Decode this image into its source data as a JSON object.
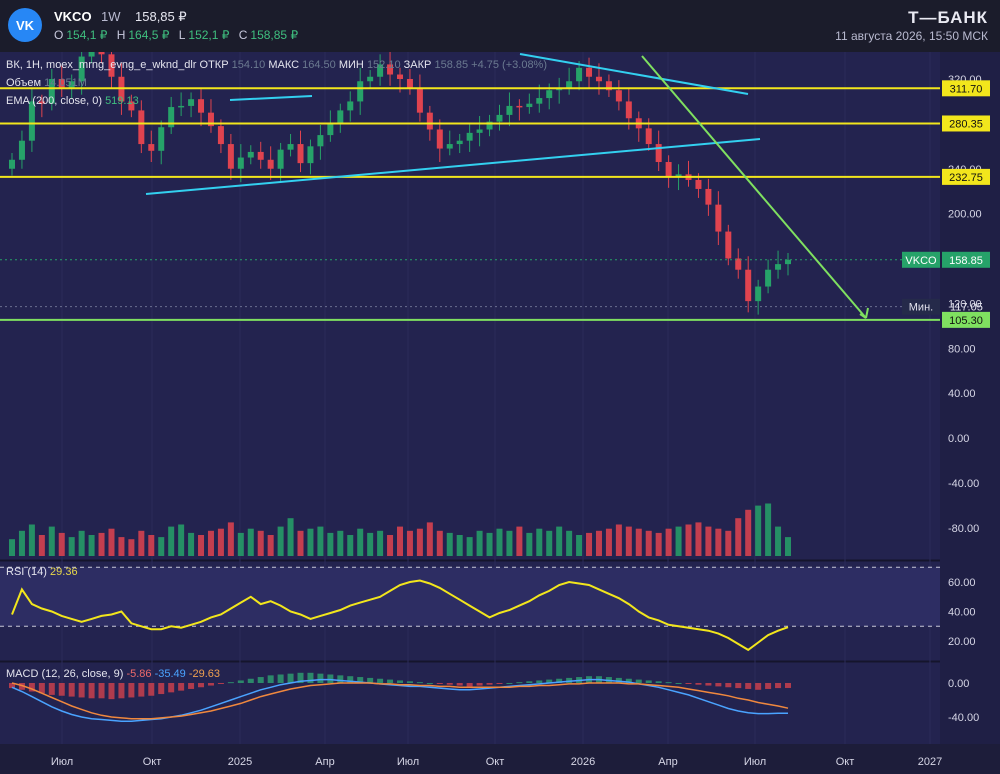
{
  "header": {
    "logo_text": "VK",
    "ticker": "VKCO",
    "timeframe": "1W",
    "last_price": "158,85 ₽",
    "open_label": "O",
    "open": "154,1 ₽",
    "high_label": "H",
    "high": "164,5 ₽",
    "low_label": "L",
    "low": "152,1 ₽",
    "close_label": "C",
    "close": "158,85 ₽",
    "brand": "Т—БАНК",
    "timestamp": "11 августа 2026, 15:50 МСК"
  },
  "legend": {
    "study_line": "ВК, 1Н, moex_mrng_evng_e_wknd_dlr",
    "open_label": "ОТКР",
    "open_value": "154.10",
    "high_label": "МАКС",
    "high_value": "164.50",
    "low_label": "МИН",
    "low_value": "152.10",
    "close_label": "ЗАКР",
    "close_value": "158.85",
    "change": "+4.75 (+3.08%)",
    "volume_label": "Объем",
    "volume_value": "14.051M",
    "ema_label": "EMA (200, close, 0)",
    "ema_value": "519.13",
    "rsi_label": "RSI (14)",
    "rsi_value": "29.36",
    "macd_label": "MACD (12, 26, close, 9)",
    "macd_v1": "-5.86",
    "macd_v2": "-35.49",
    "macd_v3": "-29.63"
  },
  "colors": {
    "up": "#26a269",
    "down": "#e0434f",
    "level": "#f2e61c",
    "trend": "#33d0f0",
    "target": "#7fe060",
    "rsi": "#f2e61c",
    "macd": "#4aa3ff",
    "signal": "#f0883e"
  },
  "chart_data": [
    {
      "type": "candlestick",
      "title": "VKCO 1W",
      "x_ticks": [
        "Июл",
        "Окт",
        "2025",
        "Апр",
        "Июл",
        "Окт",
        "2026",
        "Апр",
        "Июл",
        "Окт",
        "2027"
      ],
      "y_ticks": [
        320,
        280,
        240,
        200,
        160,
        120,
        80,
        40,
        0,
        -40,
        -80
      ],
      "y_tick_labels": [
        "320.00",
        "280.00",
        "240.00",
        "200.00",
        "160.00",
        "120.00",
        "80.00",
        "40.00",
        "0.00",
        "-40.00",
        "-80.00"
      ],
      "ylim": [
        -100,
        340
      ],
      "levels": [
        {
          "label": "311.70",
          "value": 311.7
        },
        {
          "label": "280.35",
          "value": 280.35
        },
        {
          "label": "232.75",
          "value": 232.75
        },
        {
          "label": "105.30",
          "value": 105.3
        }
      ],
      "price_tag": {
        "name": "VKCO",
        "value": "158.85",
        "y": 158.85
      },
      "min_tag": {
        "name": "Мин.",
        "value": "117.05",
        "y": 117.05
      },
      "trendlines": [
        {
          "x": [
            6,
            14
          ],
          "y": [
            246,
            277
          ]
        },
        {
          "x": [
            13,
            38
          ],
          "y": [
            310,
            301
          ]
        },
        {
          "x": [
            24,
            39
          ],
          "y": [
            378,
            343
          ]
        },
        {
          "x": [
            59,
            91
          ],
          "y": [
            278,
            316
          ]
        }
      ],
      "arrow": {
        "from": [
          33,
          396
        ],
        "to": [
          44,
          115
        ]
      },
      "close": [
        248,
        265,
        300,
        298,
        320,
        312,
        318,
        340,
        350,
        342,
        322,
        300,
        292,
        262,
        256,
        277,
        295,
        296,
        302,
        290,
        278,
        262,
        240,
        250,
        255,
        248,
        240,
        257,
        262,
        245,
        260,
        270,
        280,
        292,
        300,
        318,
        322,
        333,
        324,
        320,
        312,
        290,
        275,
        258,
        262,
        265,
        272,
        275,
        282,
        288,
        296,
        295,
        298,
        303,
        310,
        312,
        318,
        330,
        322,
        318,
        310,
        300,
        285,
        276,
        262,
        246,
        233,
        235,
        230,
        222,
        208,
        184,
        160,
        150,
        122,
        135,
        150,
        155,
        158.85
      ],
      "volume": [
        8,
        12,
        15,
        10,
        14,
        11,
        9,
        12,
        10,
        11,
        13,
        9,
        8,
        12,
        10,
        9,
        14,
        15,
        11,
        10,
        12,
        13,
        16,
        11,
        13,
        12,
        10,
        14,
        18,
        12,
        13,
        14,
        11,
        12,
        10,
        13,
        11,
        12,
        10,
        14,
        12,
        13,
        16,
        12,
        11,
        10,
        9,
        12,
        11,
        13,
        12,
        14,
        11,
        13,
        12,
        14,
        12,
        10,
        11,
        12,
        13,
        15,
        14,
        13,
        12,
        11,
        13,
        14,
        15,
        16,
        14,
        13,
        12,
        18,
        22,
        24,
        25,
        14,
        9
      ]
    },
    {
      "type": "line",
      "title": "RSI (14)",
      "y_ticks": [
        60,
        40,
        20
      ],
      "y_tick_labels": [
        "60.00",
        "40.00",
        "20.00"
      ],
      "bands": [
        70,
        30
      ],
      "ylim": [
        10,
        70
      ],
      "values": [
        38,
        55,
        45,
        42,
        40,
        37,
        35,
        33,
        35,
        37,
        38,
        40,
        32,
        30,
        28,
        28,
        30,
        29,
        31,
        33,
        36,
        38,
        42,
        46,
        50,
        45,
        47,
        44,
        40,
        38,
        35,
        37,
        39,
        41,
        44,
        46,
        48,
        50,
        54,
        58,
        60,
        61,
        59,
        56,
        52,
        48,
        44,
        40,
        36,
        39,
        41,
        44,
        47,
        51,
        54,
        58,
        60,
        59,
        58,
        55,
        52,
        49,
        45,
        40,
        36,
        34,
        31,
        30,
        29,
        28,
        27,
        25,
        22,
        18,
        14,
        19,
        24,
        27,
        29.36
      ]
    },
    {
      "type": "bar",
      "title": "MACD (12, 26, close, 9)",
      "y_ticks": [
        0,
        -40
      ],
      "y_tick_labels": [
        "0.00",
        "-40.00"
      ],
      "ylim": [
        -55,
        15
      ],
      "histogram": [
        -6,
        -8,
        -10,
        -12,
        -14,
        -15,
        -16,
        -17,
        -18,
        -18,
        -19,
        -18,
        -17,
        -16,
        -15,
        -13,
        -11,
        -9,
        -7,
        -5,
        -3,
        -1,
        1,
        3,
        5,
        7,
        9,
        10,
        11,
        12,
        12,
        11,
        10,
        9,
        8,
        7,
        6,
        5,
        4,
        3,
        2,
        1,
        0,
        -1,
        -2,
        -3,
        -4,
        -3,
        -2,
        -1,
        0,
        1,
        2,
        3,
        4,
        5,
        6,
        7,
        8,
        8,
        7,
        6,
        5,
        4,
        3,
        2,
        1,
        0,
        -1,
        -2,
        -3,
        -4,
        -5,
        -6,
        -7,
        -8,
        -7,
        -6,
        -5.86
      ],
      "macd": [
        -5,
        -10,
        -16,
        -22,
        -28,
        -33,
        -37,
        -40,
        -42,
        -43,
        -44,
        -45,
        -45,
        -44,
        -43,
        -42,
        -40,
        -38,
        -35,
        -32,
        -28,
        -24,
        -20,
        -16,
        -12,
        -8,
        -5,
        -2,
        0,
        2,
        3,
        4,
        4,
        3,
        2,
        1,
        0,
        -1,
        -2,
        -3,
        -4,
        -4,
        -5,
        -6,
        -7,
        -8,
        -8,
        -7,
        -6,
        -5,
        -4,
        -3,
        -2,
        -1,
        0,
        1,
        2,
        3,
        4,
        4,
        3,
        2,
        1,
        -1,
        -3,
        -5,
        -8,
        -11,
        -14,
        -18,
        -22,
        -26,
        -30,
        -33,
        -35,
        -36,
        -36,
        -35.5,
        -35.49
      ],
      "signal": [
        0,
        -3,
        -7,
        -12,
        -17,
        -22,
        -27,
        -31,
        -35,
        -38,
        -40,
        -41,
        -42,
        -42,
        -42,
        -41,
        -40,
        -39,
        -37,
        -35,
        -33,
        -30,
        -27,
        -24,
        -20,
        -16,
        -13,
        -10,
        -7,
        -5,
        -3,
        -2,
        -1,
        0,
        0,
        0,
        0,
        -1,
        -1,
        -2,
        -2,
        -3,
        -3,
        -4,
        -4,
        -5,
        -5,
        -5,
        -5,
        -5,
        -5,
        -4,
        -4,
        -3,
        -3,
        -2,
        -1,
        -1,
        0,
        0,
        0,
        0,
        -1,
        -1,
        -2,
        -3,
        -4,
        -5,
        -7,
        -9,
        -11,
        -13,
        -15,
        -18,
        -20,
        -23,
        -25,
        -27,
        -29.63
      ]
    }
  ]
}
